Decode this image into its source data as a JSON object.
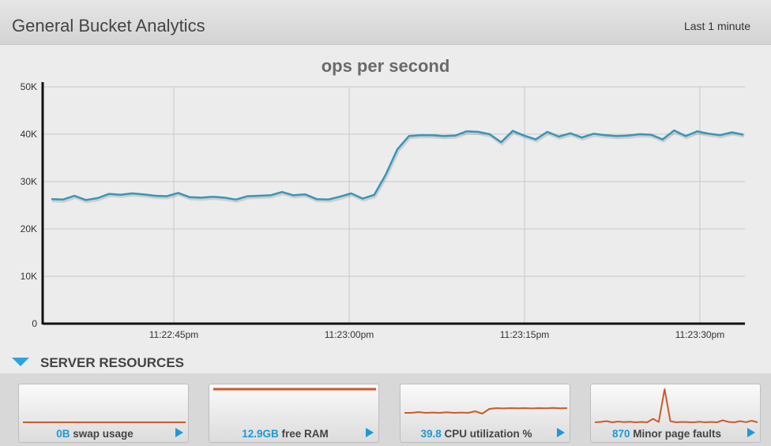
{
  "header": {
    "title": "General Bucket Analytics",
    "range": "Last 1 minute"
  },
  "section": {
    "label": "SERVER RESOURCES"
  },
  "cards": [
    {
      "value": "0B",
      "label": "swap usage",
      "spark": [
        0,
        0,
        0,
        0,
        0,
        0,
        0,
        0,
        0,
        0,
        0,
        0,
        0,
        0,
        0,
        0,
        0,
        0,
        0,
        0
      ]
    },
    {
      "value": "12.9GB",
      "label": "free RAM",
      "spark": [
        12.9,
        12.9,
        12.9,
        12.9,
        12.9,
        12.9,
        12.9,
        12.9,
        12.9,
        12.9,
        12.9,
        12.9,
        12.9,
        12.9,
        12.9,
        12.9,
        12.9,
        12.9,
        12.9,
        12.9
      ]
    },
    {
      "value": "39.8",
      "label": "CPU utilization %",
      "spark": [
        36,
        36,
        36.5,
        36,
        36.2,
        36,
        36.4,
        36,
        36.2,
        36,
        37,
        35.5,
        38.5,
        39,
        38.8,
        39,
        38.9,
        39,
        38.8,
        39,
        38.9,
        39.1,
        38.9,
        39
      ]
    },
    {
      "value": "870",
      "label": "Minor page faults",
      "spark": [
        700,
        720,
        760,
        700,
        740,
        710,
        730,
        700,
        720,
        700,
        880,
        720,
        2400,
        760,
        700,
        720,
        710,
        700,
        730,
        700,
        720,
        700,
        800,
        720,
        700,
        760,
        710,
        780,
        700
      ]
    }
  ],
  "colors": {
    "line": "#3796b8",
    "spark": "#d0582a",
    "accent": "#1e98d7"
  },
  "chart_data": {
    "type": "line",
    "title": "ops per second",
    "ylim": [
      0,
      50000
    ],
    "yticks": [
      0,
      10000,
      20000,
      30000,
      40000,
      50000
    ],
    "ytick_labels": [
      "0",
      "10K",
      "20K",
      "30K",
      "40K",
      "50K"
    ],
    "xticks": [
      "11:22:45pm",
      "11:23:00pm",
      "11:23:15pm",
      "11:23:30pm"
    ],
    "grid": true,
    "series": [
      {
        "values": [
          26300,
          26200,
          27000,
          26100,
          26500,
          27400,
          27200,
          27500,
          27300,
          27000,
          26900,
          27600,
          26700,
          26600,
          26800,
          26600,
          26200,
          26900,
          27000,
          27100,
          27800,
          27100,
          27300,
          26300,
          26200,
          26800,
          27500,
          26400,
          27200,
          31500,
          36800,
          39600,
          39800,
          39800,
          39600,
          39700,
          40600,
          40500,
          40000,
          38300,
          40700,
          39700,
          38900,
          40500,
          39500,
          40200,
          39300,
          40100,
          39800,
          39600,
          39700,
          40000,
          39900,
          38900,
          40800,
          39600,
          40600,
          40100,
          39800,
          40400,
          39900
        ]
      }
    ]
  }
}
